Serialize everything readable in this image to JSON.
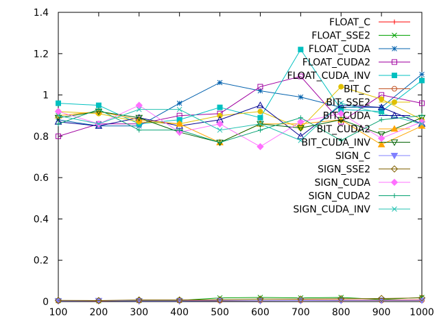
{
  "chart_data": {
    "type": "line",
    "title": "",
    "xlabel": "",
    "ylabel": "",
    "xlim": [
      100,
      1000
    ],
    "ylim": [
      0,
      1.4
    ],
    "x": [
      100,
      200,
      300,
      400,
      500,
      600,
      700,
      800,
      900,
      1000
    ],
    "x_ticks": [
      "100",
      "200",
      "300",
      "400",
      "500",
      "600",
      "700",
      "800",
      "900",
      "1000"
    ],
    "y_ticks": [
      "0",
      "0.2",
      "0.4",
      "0.6",
      "0.8",
      "1",
      "1.2",
      "1.4"
    ],
    "grid": false,
    "legend_position": "top-right",
    "series": [
      {
        "name": "FLOAT_C",
        "color": "#ff0000",
        "marker": "plus",
        "values": [
          0.004,
          0.003,
          0.004,
          0.004,
          0.005,
          0.005,
          0.006,
          0.007,
          0.007,
          0.008
        ]
      },
      {
        "name": "FLOAT_SSE2",
        "color": "#00a000",
        "marker": "cross",
        "values": [
          0.005,
          0.004,
          0.005,
          0.006,
          0.018,
          0.02,
          0.018,
          0.02,
          0.01,
          0.02
        ]
      },
      {
        "name": "FLOAT_CUDA",
        "color": "#0060ad",
        "marker": "star",
        "values": [
          0.88,
          0.85,
          0.85,
          0.96,
          1.06,
          1.02,
          0.99,
          0.94,
          0.94,
          1.1
        ]
      },
      {
        "name": "FLOAT_CUDA2",
        "color": "#a000a0",
        "marker": "square",
        "values": [
          0.8,
          0.86,
          0.86,
          0.9,
          0.91,
          1.04,
          1.09,
          0.87,
          1.0,
          0.96
        ]
      },
      {
        "name": "FLOAT_CUDA_INV",
        "color": "#00c0c0",
        "marker": "filled-square",
        "values": [
          0.96,
          0.95,
          0.86,
          0.88,
          0.94,
          0.89,
          1.22,
          0.93,
          0.92,
          1.07
        ]
      },
      {
        "name": "BIT_C",
        "color": "#c05020",
        "marker": "circle",
        "values": [
          0.003,
          0.003,
          0.004,
          0.004,
          0.004,
          0.005,
          0.005,
          0.006,
          0.005,
          0.006
        ]
      },
      {
        "name": "BIT_SSE2",
        "color": "#e0c000",
        "marker": "filled-circle",
        "values": [
          0.92,
          0.91,
          0.87,
          0.86,
          0.9,
          0.92,
          0.84,
          1.04,
          0.98,
          0.88
        ]
      },
      {
        "name": "BIT_CUDA",
        "color": "#000090",
        "marker": "triangle",
        "values": [
          0.87,
          0.85,
          0.89,
          0.85,
          0.88,
          0.95,
          0.8,
          0.95,
          0.94,
          0.86
        ]
      },
      {
        "name": "BIT_CUDA2",
        "color": "#ffa500",
        "marker": "filled-triangle",
        "values": [
          0.9,
          0.92,
          0.88,
          0.86,
          0.77,
          0.86,
          0.86,
          0.88,
          0.76,
          0.85
        ]
      },
      {
        "name": "BIT_CUDA_INV",
        "color": "#006000",
        "marker": "inverted-triangle",
        "values": [
          0.89,
          0.92,
          0.89,
          0.82,
          0.77,
          0.86,
          0.84,
          0.88,
          0.81,
          0.89
        ]
      },
      {
        "name": "SIGN_C",
        "color": "#8080ff",
        "marker": "filled-inverted-triangle",
        "values": [
          0.003,
          0.004,
          0.003,
          0.003,
          0.004,
          0.004,
          0.005,
          0.005,
          0.006,
          0.006
        ]
      },
      {
        "name": "SIGN_SSE2",
        "color": "#806000",
        "marker": "diamond",
        "values": [
          0.006,
          0.005,
          0.008,
          0.008,
          0.009,
          0.012,
          0.012,
          0.014,
          0.015,
          0.018
        ]
      },
      {
        "name": "SIGN_CUDA",
        "color": "#ff70ff",
        "marker": "filled-diamond",
        "values": [
          0.92,
          0.86,
          0.95,
          0.82,
          0.86,
          0.75,
          0.87,
          0.91,
          0.79,
          0.87
        ]
      },
      {
        "name": "SIGN_CUDA2",
        "color": "#00a070",
        "marker": "plus",
        "values": [
          0.86,
          0.93,
          0.83,
          0.83,
          0.77,
          0.83,
          0.89,
          0.78,
          0.88,
          0.9
        ]
      },
      {
        "name": "SIGN_CUDA_INV",
        "color": "#20c0b0",
        "marker": "cross",
        "values": [
          0.9,
          0.86,
          0.93,
          0.93,
          0.83,
          0.86,
          0.78,
          0.96,
          0.91,
          0.86
        ]
      }
    ]
  }
}
